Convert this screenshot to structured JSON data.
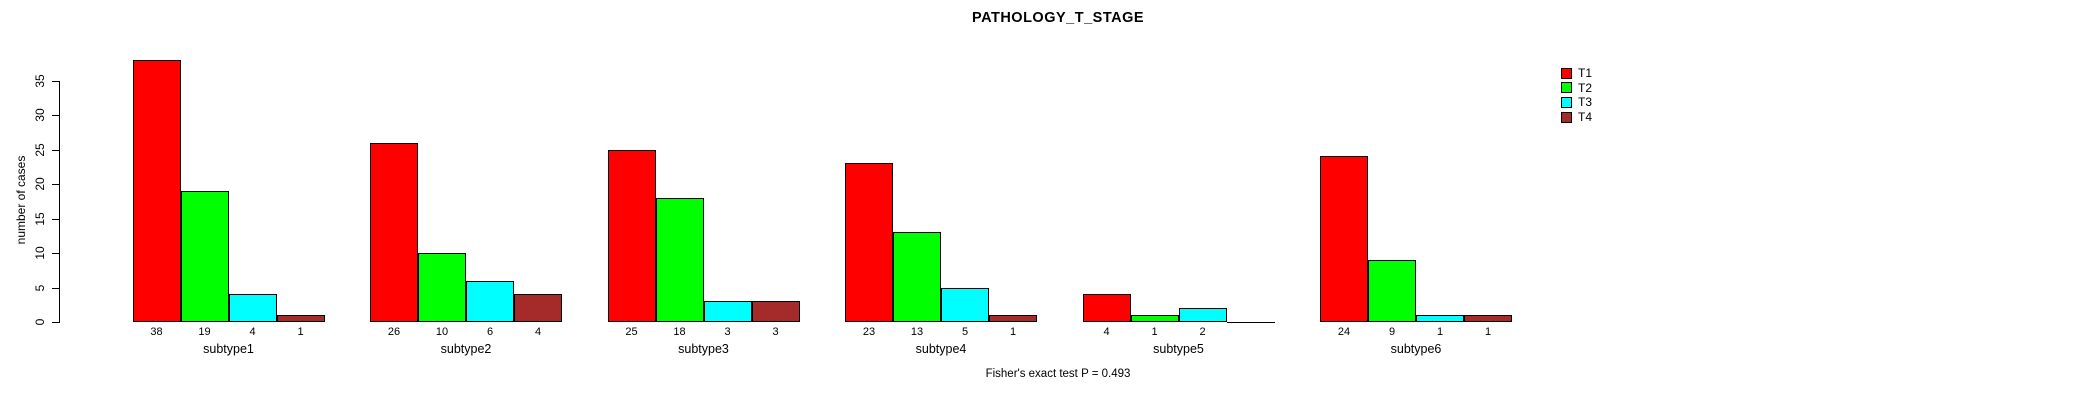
{
  "title": "PATHOLOGY_T_STAGE",
  "footer_note": "Fisher's exact test P = 0.493",
  "y_axis": {
    "label": "number of cases",
    "ticks": [
      0,
      5,
      10,
      15,
      20,
      25,
      30,
      35
    ]
  },
  "legend": {
    "position": "top-right",
    "items": [
      {
        "label": "T1",
        "color": "#FF0000"
      },
      {
        "label": "T2",
        "color": "#00FF00"
      },
      {
        "label": "T3",
        "color": "#00FFFF"
      },
      {
        "label": "T4",
        "color": "#A52A2A"
      }
    ]
  },
  "chart_data": {
    "type": "bar",
    "title": "PATHOLOGY_T_STAGE",
    "xlabel": "",
    "ylabel": "number of cases",
    "ylim": [
      0,
      38
    ],
    "grid": false,
    "legend_position": "top-right",
    "categories": [
      "subtype1",
      "subtype2",
      "subtype3",
      "subtype4",
      "subtype5",
      "subtype6"
    ],
    "series": [
      {
        "name": "T1",
        "color": "#FF0000",
        "values": [
          38,
          26,
          25,
          23,
          4,
          24
        ]
      },
      {
        "name": "T2",
        "color": "#00FF00",
        "values": [
          19,
          10,
          18,
          13,
          1,
          9
        ]
      },
      {
        "name": "T3",
        "color": "#00FFFF",
        "values": [
          4,
          6,
          3,
          5,
          2,
          1
        ]
      },
      {
        "name": "T4",
        "color": "#A52A2A",
        "values": [
          1,
          4,
          3,
          1,
          0,
          1
        ]
      }
    ],
    "bar_value_labels": "shown below each bar; zero values have no label and are drawn as a flat baseline segment",
    "annotation": "Fisher's exact test P = 0.493"
  }
}
